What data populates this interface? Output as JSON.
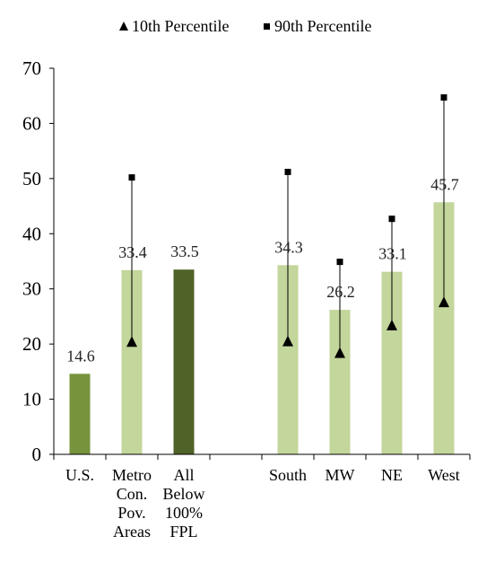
{
  "chart_data": {
    "type": "bar",
    "categories": [
      {
        "label_lines": [
          "U.S."
        ],
        "color": "#77933c"
      },
      {
        "label_lines": [
          "Metro",
          "Con.",
          "Pov.",
          "Areas"
        ],
        "color": "#c3d69b"
      },
      {
        "label_lines": [
          "All",
          "Below",
          "100%",
          "FPL"
        ],
        "color": "#4f6228"
      },
      {
        "label_lines": [],
        "color": null
      },
      {
        "label_lines": [
          "South"
        ],
        "color": "#c3d69b"
      },
      {
        "label_lines": [
          "MW"
        ],
        "color": "#c3d69b"
      },
      {
        "label_lines": [
          "NE"
        ],
        "color": "#c3d69b"
      },
      {
        "label_lines": [
          "West"
        ],
        "color": "#c3d69b"
      }
    ],
    "values": [
      14.6,
      33.4,
      33.5,
      null,
      34.3,
      26.2,
      33.1,
      45.7
    ],
    "value_labels": [
      "14.6",
      "33.4",
      "33.5",
      "",
      "34.3",
      "26.2",
      "33.1",
      "45.7"
    ],
    "series": [
      {
        "name": "10th Percentile",
        "marker": "triangle",
        "values": [
          null,
          20.3,
          null,
          null,
          20.4,
          18.3,
          23.3,
          27.5
        ]
      },
      {
        "name": "90th Percentile",
        "marker": "square",
        "values": [
          null,
          50.2,
          null,
          null,
          51.2,
          34.9,
          42.7,
          64.7
        ]
      }
    ],
    "ylim": [
      0,
      70
    ],
    "yticks": [
      "0",
      "10",
      "20",
      "30",
      "40",
      "50",
      "60",
      "70"
    ],
    "legend_position": "top",
    "grid": false
  }
}
